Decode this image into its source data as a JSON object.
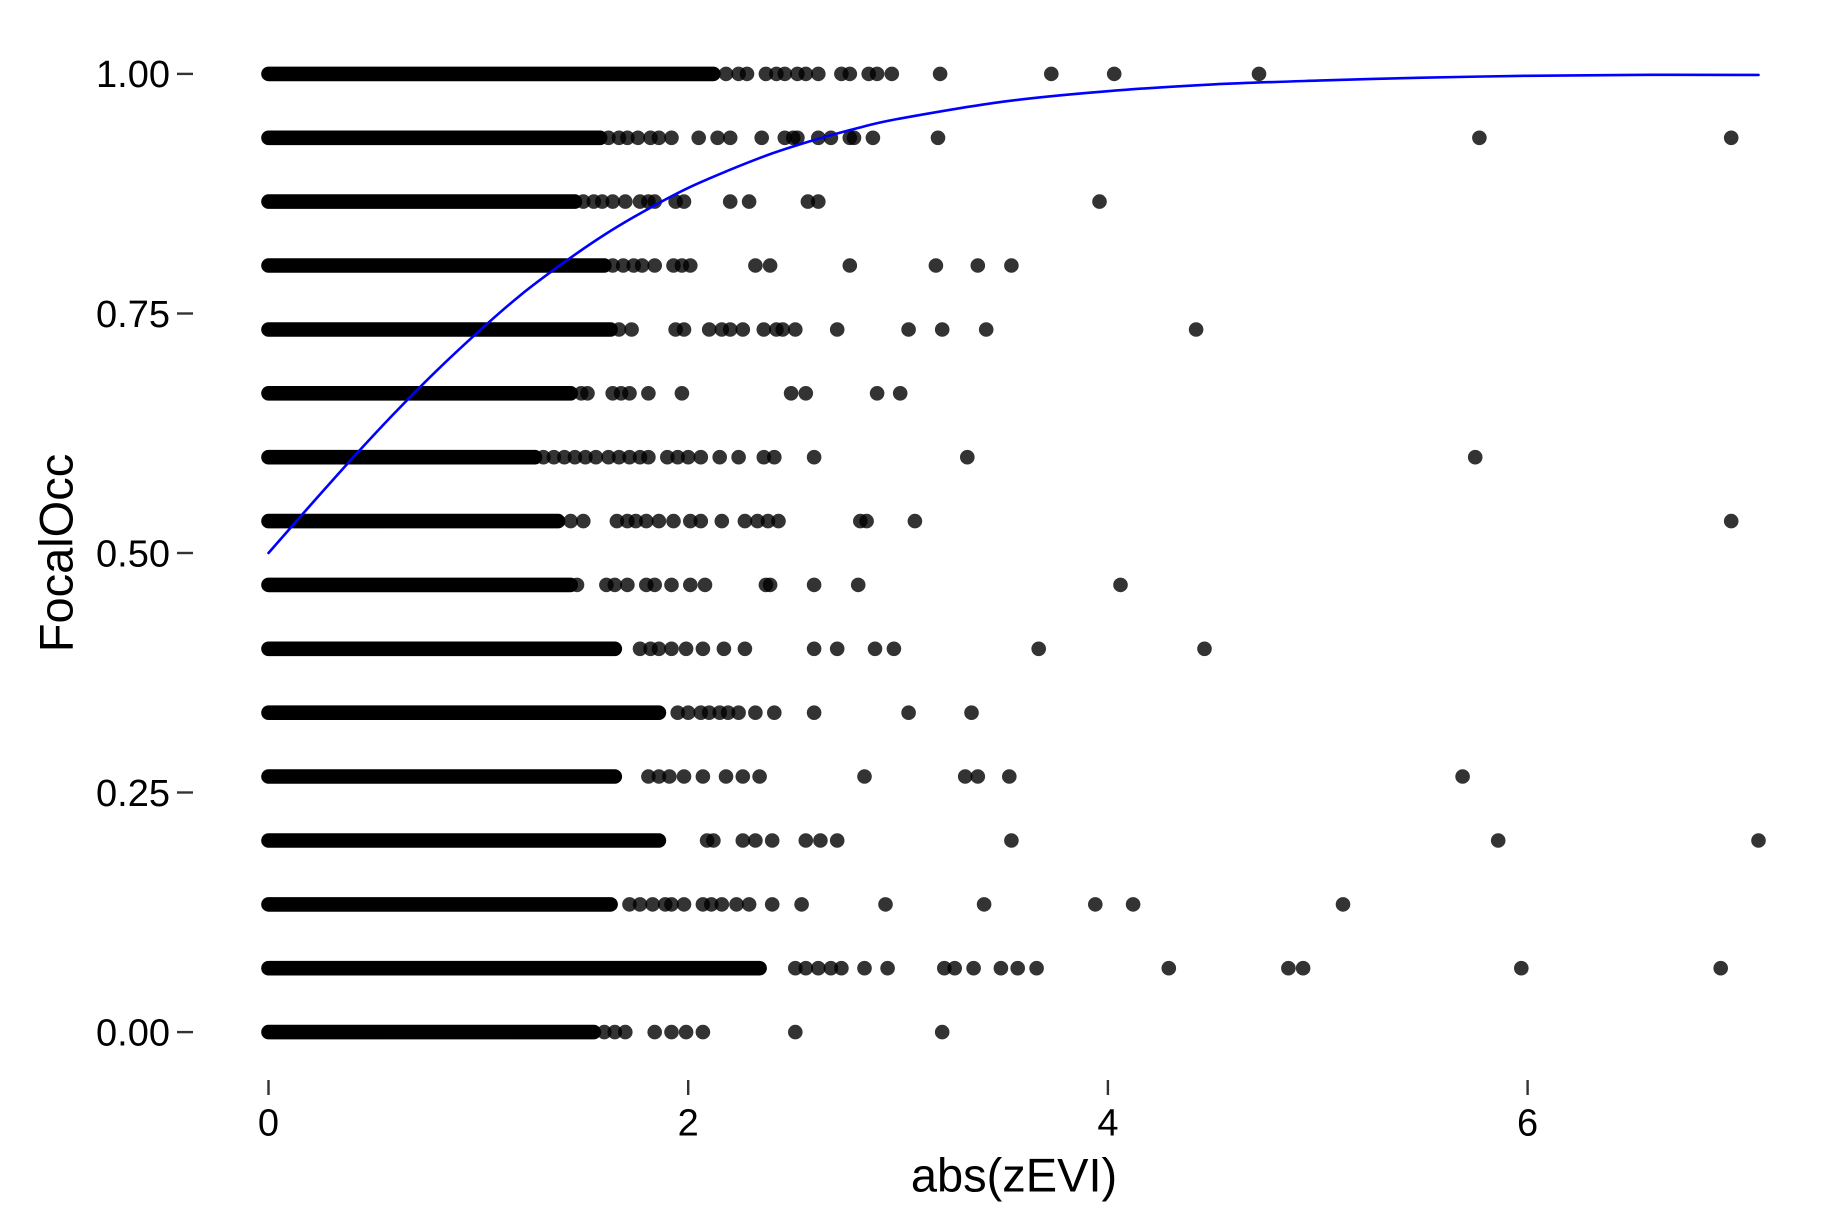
{
  "chart_data": {
    "type": "scatter",
    "xlabel": "abs(zEVI)",
    "ylabel": "FocalOcc",
    "xlim": [
      -0.36,
      7.46
    ],
    "ylim": [
      -0.05,
      1.05
    ],
    "x_ticks": [
      0,
      2,
      4,
      6
    ],
    "x_tick_labels": [
      "0",
      "2",
      "4",
      "6"
    ],
    "y_ticks": [
      0,
      0.25,
      0.5,
      0.75,
      1
    ],
    "y_tick_labels": [
      "0.00",
      "0.25",
      "0.50",
      "0.75",
      "1.00"
    ],
    "grid": false,
    "legend": "none",
    "point_color": "#000000",
    "rows": [
      {
        "y": 1.0,
        "dense_x_range": [
          0,
          2.12
        ],
        "x": [
          2.18,
          2.24,
          2.28,
          2.37,
          2.42,
          2.46,
          2.52,
          2.56,
          2.62,
          2.73,
          2.77,
          2.86,
          2.9,
          2.97,
          3.2,
          3.73,
          4.03,
          4.72
        ]
      },
      {
        "y": 0.9333,
        "dense_x_range": [
          0,
          1.58
        ],
        "x": [
          1.62,
          1.67,
          1.71,
          1.76,
          1.82,
          1.86,
          1.92,
          2.05,
          2.14,
          2.2,
          2.35,
          2.46,
          2.5,
          2.52,
          2.62,
          2.68,
          2.77,
          2.79,
          2.88,
          3.19,
          5.77,
          6.97
        ]
      },
      {
        "y": 0.8667,
        "dense_x_range": [
          0,
          1.46
        ],
        "x": [
          1.5,
          1.55,
          1.59,
          1.64,
          1.7,
          1.77,
          1.81,
          1.84,
          1.94,
          1.98,
          2.2,
          2.29,
          2.57,
          2.62,
          3.96
        ]
      },
      {
        "y": 0.8,
        "dense_x_range": [
          0,
          1.6
        ],
        "x": [
          1.64,
          1.69,
          1.74,
          1.78,
          1.84,
          1.93,
          1.97,
          2.01,
          2.32,
          2.39,
          2.77,
          3.18,
          3.38,
          3.54
        ]
      },
      {
        "y": 0.7333,
        "dense_x_range": [
          0,
          1.63
        ],
        "x": [
          1.67,
          1.73,
          1.94,
          1.98,
          2.1,
          2.16,
          2.2,
          2.26,
          2.36,
          2.42,
          2.45,
          2.51,
          2.71,
          3.05,
          3.21,
          3.42,
          4.42
        ]
      },
      {
        "y": 0.6667,
        "dense_x_range": [
          0,
          1.44
        ],
        "x": [
          1.49,
          1.52,
          1.64,
          1.68,
          1.72,
          1.81,
          1.97,
          2.49,
          2.56,
          2.9,
          3.01
        ]
      },
      {
        "y": 0.6,
        "dense_x_range": [
          0,
          1.27
        ],
        "x": [
          1.31,
          1.36,
          1.41,
          1.46,
          1.51,
          1.56,
          1.62,
          1.67,
          1.72,
          1.77,
          1.81,
          1.9,
          1.95,
          2.0,
          2.06,
          2.15,
          2.24,
          2.36,
          2.41,
          2.6,
          3.33,
          5.75
        ]
      },
      {
        "y": 0.5333,
        "dense_x_range": [
          0,
          1.38
        ],
        "x": [
          1.44,
          1.5,
          1.66,
          1.71,
          1.75,
          1.8,
          1.86,
          1.93,
          2.01,
          2.06,
          2.16,
          2.27,
          2.33,
          2.38,
          2.43,
          2.82,
          2.85,
          3.08,
          6.97
        ]
      },
      {
        "y": 0.4667,
        "dense_x_range": [
          0,
          1.44
        ],
        "x": [
          1.47,
          1.61,
          1.65,
          1.71,
          1.8,
          1.84,
          1.92,
          2.01,
          2.08,
          2.37,
          2.39,
          2.6,
          2.81,
          4.06
        ]
      },
      {
        "y": 0.4,
        "dense_x_range": [
          0,
          1.65
        ],
        "x": [
          1.77,
          1.82,
          1.86,
          1.92,
          1.99,
          2.07,
          2.17,
          2.27,
          2.6,
          2.71,
          2.89,
          2.98,
          3.67,
          4.46
        ]
      },
      {
        "y": 0.3333,
        "dense_x_range": [
          0,
          1.86
        ],
        "x": [
          1.95,
          2.0,
          2.06,
          2.1,
          2.15,
          2.19,
          2.24,
          2.32,
          2.41,
          2.6,
          3.05,
          3.35
        ]
      },
      {
        "y": 0.2667,
        "dense_x_range": [
          0,
          1.65
        ],
        "x": [
          1.81,
          1.86,
          1.91,
          1.98,
          2.07,
          2.18,
          2.26,
          2.34,
          2.84,
          3.32,
          3.38,
          3.53,
          5.69
        ]
      },
      {
        "y": 0.2,
        "dense_x_range": [
          0,
          1.86
        ],
        "x": [
          2.09,
          2.12,
          2.26,
          2.32,
          2.4,
          2.56,
          2.63,
          2.71,
          3.54,
          5.86,
          7.1
        ]
      },
      {
        "y": 0.1333,
        "dense_x_range": [
          0,
          1.63
        ],
        "x": [
          1.72,
          1.77,
          1.83,
          1.89,
          1.92,
          1.98,
          2.07,
          2.11,
          2.16,
          2.23,
          2.29,
          2.4,
          2.54,
          2.94,
          3.41,
          3.94,
          4.12,
          5.12
        ]
      },
      {
        "y": 0.0667,
        "dense_x_range": [
          0,
          2.34
        ],
        "x": [
          2.51,
          2.56,
          2.62,
          2.68,
          2.73,
          2.84,
          2.95,
          3.22,
          3.27,
          3.36,
          3.49,
          3.57,
          3.66,
          4.29,
          4.86,
          4.93,
          5.97,
          6.92
        ]
      },
      {
        "y": 0.0,
        "dense_x_range": [
          0,
          1.55
        ],
        "x": [
          1.6,
          1.65,
          1.7,
          1.84,
          1.92,
          1.99,
          2.07,
          2.51,
          3.21
        ]
      }
    ],
    "fit_line": {
      "color": "#0000ff",
      "x": [
        0,
        0.2,
        0.4,
        0.6,
        0.8,
        1.0,
        1.2,
        1.4,
        1.6,
        1.8,
        2.0,
        2.2,
        2.4,
        2.6,
        2.8,
        3.0,
        3.5,
        4.0,
        4.5,
        5.0,
        5.5,
        6.0,
        6.5,
        7.0,
        7.1
      ],
      "y": [
        0.5,
        0.55,
        0.599,
        0.646,
        0.69,
        0.731,
        0.769,
        0.802,
        0.832,
        0.858,
        0.881,
        0.9,
        0.917,
        0.931,
        0.943,
        0.953,
        0.971,
        0.982,
        0.989,
        0.993,
        0.996,
        0.998,
        0.999,
        0.999,
        0.999
      ]
    }
  }
}
